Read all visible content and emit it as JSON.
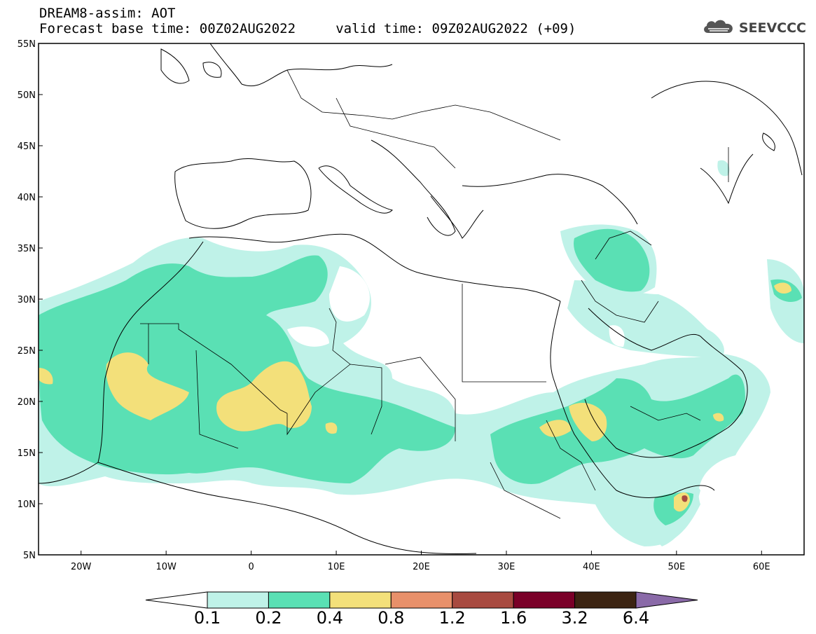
{
  "header": {
    "title_line1": "DREAM8-assim: AOT",
    "title_line2": "Forecast base time: 00Z02AUG2022     valid time: 09Z02AUG2022 (+09)"
  },
  "brand": {
    "name": "SEEVCCC",
    "icon": "cloud-logo-icon"
  },
  "map": {
    "lon_range": [
      -25,
      65
    ],
    "lat_range": [
      5,
      55
    ],
    "lat_ticks": [
      "55N",
      "50N",
      "45N",
      "40N",
      "35N",
      "30N",
      "25N",
      "20N",
      "15N",
      "10N",
      "5N"
    ],
    "lon_ticks": [
      "20W",
      "10W",
      "0",
      "10E",
      "20E",
      "30E",
      "40E",
      "50E",
      "60E"
    ]
  },
  "legend": {
    "colors": [
      "#ffffff",
      "#bff2e8",
      "#5ae0b4",
      "#f3e07a",
      "#e8906a",
      "#a84a40",
      "#7a0028",
      "#3c2412",
      "#8a6aa8"
    ],
    "labels": [
      "0.1",
      "0.2",
      "0.4",
      "0.8",
      "1.2",
      "1.6",
      "3.2",
      "6.4"
    ]
  }
}
